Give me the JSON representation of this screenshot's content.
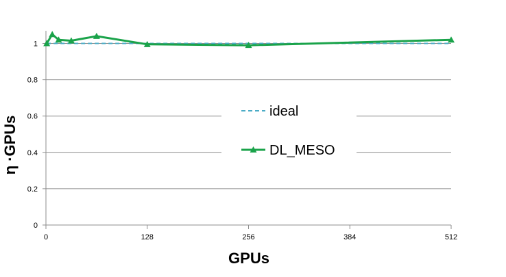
{
  "chart_data": {
    "type": "line",
    "xlabel": "GPUs",
    "ylabel": "η ·GPUs",
    "xlim": [
      0,
      512
    ],
    "ylim": [
      0,
      1
    ],
    "x_ticks": [
      0,
      128,
      256,
      384,
      512
    ],
    "y_ticks": [
      0,
      0.2,
      0.4,
      0.6,
      0.8,
      1
    ],
    "x_tick_labels": [
      "0",
      "128",
      "256",
      "384",
      "512"
    ],
    "y_tick_labels": [
      "0",
      "0.2",
      "0.4",
      "0.6",
      "0.8",
      "1"
    ],
    "grid": "horizontal",
    "legend_position": "center",
    "series": [
      {
        "name": "ideal",
        "color": "#4bacc6",
        "style": "dashed",
        "marker": "none",
        "x": [
          1,
          512
        ],
        "y": [
          1.0,
          1.0
        ]
      },
      {
        "name": "DL_MESO",
        "color": "#1aa34a",
        "style": "solid",
        "marker": "triangle",
        "x": [
          1,
          8,
          16,
          32,
          64,
          128,
          256,
          512
        ],
        "y": [
          1.0,
          1.05,
          1.02,
          1.015,
          1.04,
          0.995,
          0.99,
          1.02
        ]
      }
    ]
  }
}
